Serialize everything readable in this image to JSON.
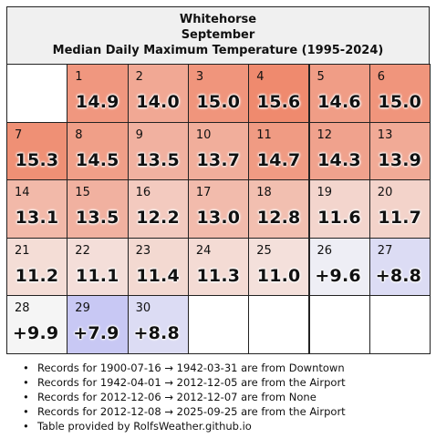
{
  "title": {
    "line1": "Whitehorse",
    "line2": "September",
    "line3": "Median Daily Maximum Temperature (1995-2024)"
  },
  "chart_data": {
    "type": "table",
    "title": "Whitehorse September Median Daily Maximum Temperature (1995-2024)",
    "start_weekday": 1,
    "days": [
      {
        "day": 1,
        "value": 14.9,
        "label": "14.9"
      },
      {
        "day": 2,
        "value": 14.0,
        "label": "14.0"
      },
      {
        "day": 3,
        "value": 15.0,
        "label": "15.0"
      },
      {
        "day": 4,
        "value": 15.6,
        "label": "15.6"
      },
      {
        "day": 5,
        "value": 14.6,
        "label": "14.6"
      },
      {
        "day": 6,
        "value": 15.0,
        "label": "15.0"
      },
      {
        "day": 7,
        "value": 15.3,
        "label": "15.3"
      },
      {
        "day": 8,
        "value": 14.5,
        "label": "14.5"
      },
      {
        "day": 9,
        "value": 13.5,
        "label": "13.5"
      },
      {
        "day": 10,
        "value": 13.7,
        "label": "13.7"
      },
      {
        "day": 11,
        "value": 14.7,
        "label": "14.7"
      },
      {
        "day": 12,
        "value": 14.3,
        "label": "14.3"
      },
      {
        "day": 13,
        "value": 13.9,
        "label": "13.9"
      },
      {
        "day": 14,
        "value": 13.1,
        "label": "13.1"
      },
      {
        "day": 15,
        "value": 13.5,
        "label": "13.5"
      },
      {
        "day": 16,
        "value": 12.2,
        "label": "12.2"
      },
      {
        "day": 17,
        "value": 13.0,
        "label": "13.0"
      },
      {
        "day": 18,
        "value": 12.8,
        "label": "12.8"
      },
      {
        "day": 19,
        "value": 11.6,
        "label": "11.6"
      },
      {
        "day": 20,
        "value": 11.7,
        "label": "11.7"
      },
      {
        "day": 21,
        "value": 11.2,
        "label": "11.2"
      },
      {
        "day": 22,
        "value": 11.1,
        "label": "11.1"
      },
      {
        "day": 23,
        "value": 11.4,
        "label": "11.4"
      },
      {
        "day": 24,
        "value": 11.3,
        "label": "11.3"
      },
      {
        "day": 25,
        "value": 11.0,
        "label": "11.0"
      },
      {
        "day": 26,
        "value": 9.6,
        "label": "+9.6"
      },
      {
        "day": 27,
        "value": 8.8,
        "label": "+8.8"
      },
      {
        "day": 28,
        "value": 9.9,
        "label": "+9.9"
      },
      {
        "day": 29,
        "value": 7.9,
        "label": "+7.9"
      },
      {
        "day": 30,
        "value": 8.8,
        "label": "+8.8"
      }
    ]
  },
  "colors": {
    "border": "#222222",
    "header_bg": "#f0f0f0",
    "cold": "#c8c8f4",
    "neutral": "#f5f5f5",
    "warm": "#ef8a6e"
  },
  "notes": [
    "Records for 1900-07-16 → 1942-03-31 are from Downtown",
    "Records for 1942-04-01 → 2012-12-05 are from the Airport",
    "Records for 2012-12-06 → 2012-12-07 are from None",
    "Records for 2012-12-08 → 2025-09-25 are from the Airport",
    "Table provided by RolfsWeather.github.io"
  ]
}
